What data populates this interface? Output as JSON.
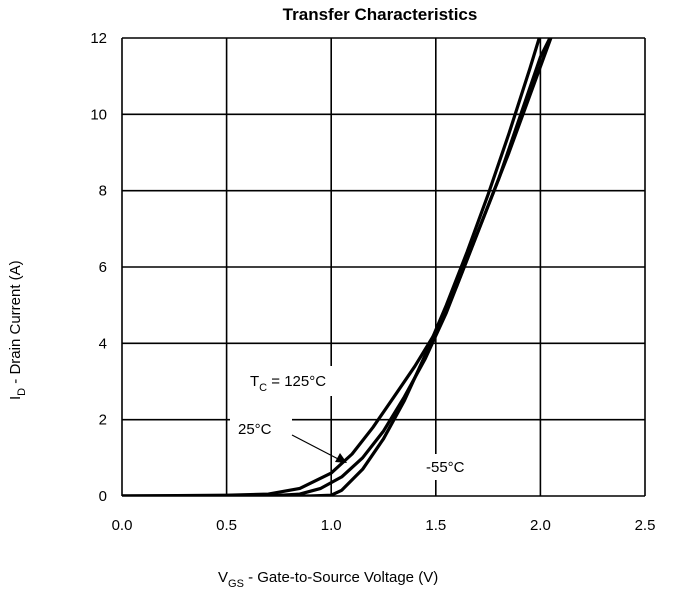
{
  "chart_data": {
    "type": "line",
    "title": "Transfer Characteristics",
    "xlabel": {
      "main": "V",
      "sub": "GS",
      "rest": "Gate-to-Source Voltage (V)"
    },
    "ylabel": {
      "main": "I",
      "sub": "D",
      "rest": "Drain Current (A)"
    },
    "xlim": [
      0,
      2.5
    ],
    "ylim": [
      0,
      12
    ],
    "xticks": [
      "0.0",
      "0.5",
      "1.0",
      "1.5",
      "2.0",
      "2.5"
    ],
    "yticks": [
      "0",
      "2",
      "4",
      "6",
      "8",
      "10",
      "12"
    ],
    "grid": true,
    "series": [
      {
        "name": "T_C = 125°C",
        "x": [
          0.0,
          0.5,
          0.7,
          0.85,
          1.0,
          1.1,
          1.2,
          1.3,
          1.4,
          1.5,
          1.6,
          1.7,
          1.8,
          1.9,
          2.0,
          2.1,
          2.15
        ],
        "y": [
          0.0,
          0.02,
          0.05,
          0.2,
          0.6,
          1.1,
          1.8,
          2.6,
          3.4,
          4.3,
          5.5,
          6.9,
          8.3,
          9.9,
          11.5,
          12.6,
          13.2
        ]
      },
      {
        "name": "25°C",
        "x": [
          0.0,
          0.7,
          0.85,
          0.95,
          1.05,
          1.15,
          1.25,
          1.35,
          1.45,
          1.55,
          1.65,
          1.75,
          1.85,
          1.95,
          2.05,
          2.1
        ],
        "y": [
          0.0,
          0.0,
          0.05,
          0.2,
          0.5,
          1.0,
          1.7,
          2.6,
          3.6,
          4.8,
          6.2,
          7.6,
          9.0,
          10.5,
          12.0,
          12.8
        ]
      },
      {
        "name": "-55°C",
        "x": [
          0.0,
          0.9,
          1.0,
          1.05,
          1.15,
          1.25,
          1.35,
          1.45,
          1.55,
          1.65,
          1.75,
          1.85,
          1.95,
          2.0
        ],
        "y": [
          0.0,
          0.0,
          0.02,
          0.15,
          0.7,
          1.5,
          2.5,
          3.7,
          5.0,
          6.4,
          7.9,
          9.5,
          11.2,
          12.1
        ]
      }
    ],
    "annotations": [
      {
        "main": "T",
        "sub": "C",
        "rest": " = 125°C"
      },
      {
        "text": "25°C"
      },
      {
        "text": "-55°C"
      }
    ]
  }
}
